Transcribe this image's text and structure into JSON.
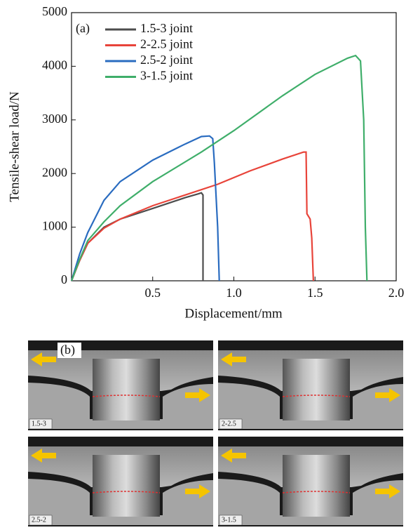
{
  "chart_data": {
    "type": "line",
    "annotation": "(a)",
    "xlabel": "Displacement/mm",
    "ylabel": "Tensile-shear load/N",
    "xlim": [
      0,
      2.0
    ],
    "ylim": [
      0,
      5000
    ],
    "xticks": [
      0.5,
      {
        "value": 1,
        "label": "1.0"
      },
      1.5,
      {
        "value": 2,
        "label": "2.0"
      }
    ],
    "yticks": [
      0,
      1000,
      2000,
      3000,
      4000,
      5000
    ],
    "grid": false,
    "legend": "upper left",
    "series": [
      {
        "name": "1.5-3 joint",
        "color": "#4d4d4d",
        "x": [
          0,
          0.05,
          0.1,
          0.2,
          0.3,
          0.5,
          0.7,
          0.78,
          0.8,
          0.81,
          0.81
        ],
        "values": [
          0,
          380,
          700,
          1000,
          1150,
          1350,
          1550,
          1620,
          1640,
          1600,
          0
        ]
      },
      {
        "name": "2-2.5 joint",
        "color": "#e8443a",
        "x": [
          0,
          0.05,
          0.1,
          0.2,
          0.3,
          0.5,
          0.7,
          0.9,
          1.1,
          1.3,
          1.43,
          1.445,
          1.45,
          1.47,
          1.48,
          1.49
        ],
        "values": [
          0,
          380,
          700,
          980,
          1150,
          1400,
          1600,
          1800,
          2050,
          2270,
          2400,
          2400,
          1250,
          1150,
          800,
          0
        ]
      },
      {
        "name": "2.5-2 joint",
        "color": "#2a6cc0",
        "x": [
          0,
          0.05,
          0.1,
          0.2,
          0.3,
          0.5,
          0.7,
          0.8,
          0.85,
          0.87,
          0.88,
          0.9,
          0.91
        ],
        "values": [
          0,
          500,
          900,
          1500,
          1850,
          2250,
          2550,
          2690,
          2700,
          2650,
          2200,
          1000,
          0
        ]
      },
      {
        "name": "3-1.5 joint",
        "color": "#3fae6a",
        "x": [
          0,
          0.05,
          0.1,
          0.2,
          0.3,
          0.5,
          0.8,
          1.0,
          1.3,
          1.5,
          1.7,
          1.75,
          1.78,
          1.8,
          1.81,
          1.82
        ],
        "values": [
          0,
          400,
          750,
          1100,
          1400,
          1850,
          2400,
          2800,
          3450,
          3850,
          4150,
          4200,
          4100,
          3000,
          1000,
          0
        ]
      }
    ]
  },
  "panel_b": {
    "label": "(b)",
    "images": [
      "1.5-3",
      "2-2.5",
      "2.5-2",
      "3-1.5"
    ]
  }
}
